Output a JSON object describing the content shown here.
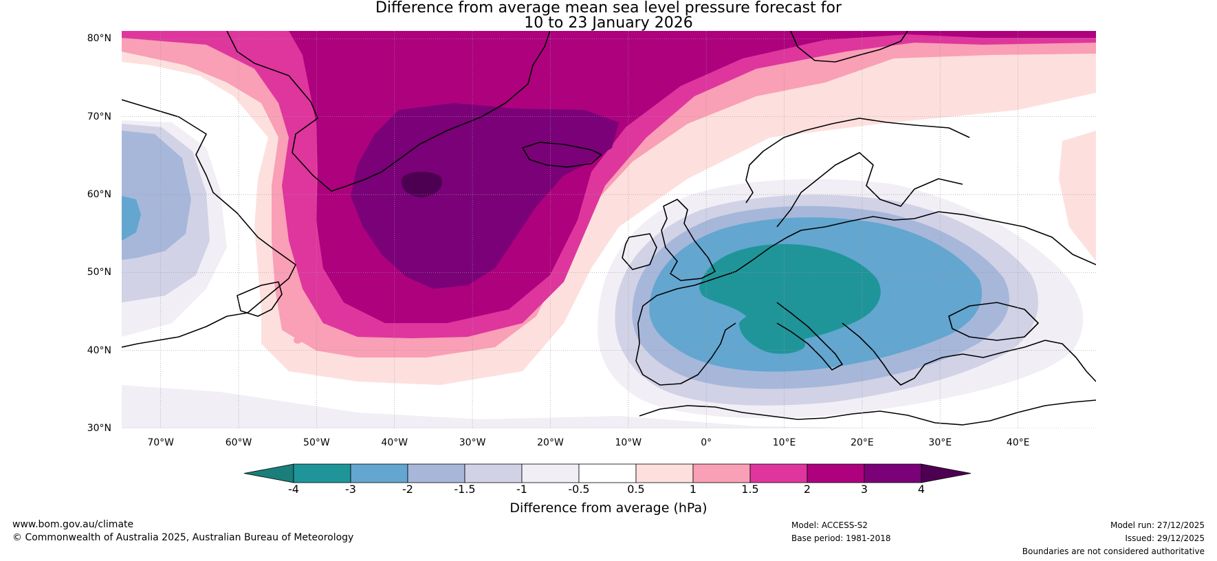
{
  "title": {
    "line1": "Difference from average mean sea level pressure forecast for",
    "line2": "10 to 23 January 2026"
  },
  "map": {
    "lat_ticks": [
      "80°N",
      "70°N",
      "60°N",
      "50°N",
      "40°N",
      "30°N"
    ],
    "lon_ticks": [
      "70°W",
      "60°W",
      "50°W",
      "40°W",
      "30°W",
      "20°W",
      "10°W",
      "0°",
      "10°E",
      "20°E",
      "30°E",
      "40°E"
    ],
    "lat_values": [
      80,
      70,
      60,
      50,
      40,
      30
    ],
    "lon_values": [
      -70,
      -60,
      -50,
      -40,
      -30,
      -20,
      -10,
      0,
      10,
      20,
      30,
      40
    ],
    "extent": {
      "lon": [
        -75,
        50
      ],
      "lat": [
        30,
        81
      ]
    }
  },
  "colorbar": {
    "title": "Difference from average (hPa)",
    "levels": [
      "-4",
      "-3",
      "-2",
      "-1.5",
      "-1",
      "-0.5",
      "0.5",
      "1",
      "1.5",
      "2",
      "3",
      "4"
    ],
    "colors": [
      "#1a7e7a",
      "#1f959a",
      "#63a6cf",
      "#a6b7da",
      "#d1d2e6",
      "#f1eef5",
      "#ffffff",
      "#fde0dd",
      "#f99fb6",
      "#de369d",
      "#ad017e",
      "#7a0177",
      "#4d0052"
    ]
  },
  "footer": {
    "website": "www.bom.gov.au/climate",
    "copyright": "© Commonwealth of Australia 2025, Australian Bureau of Meteorology",
    "model": "Model: ACCESS-S2",
    "base_period": "Base period: 1981-2018",
    "model_run": "Model run: 27/12/2025",
    "issued": "Issued: 29/12/2025",
    "disclaimer": "Boundaries are not considered authoritative"
  }
}
